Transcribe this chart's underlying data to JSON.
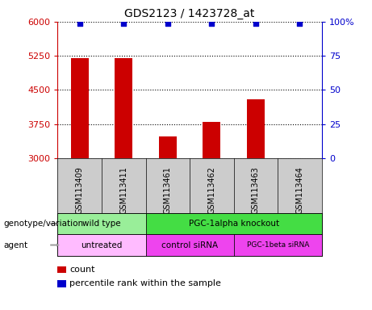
{
  "title": "GDS2123 / 1423728_at",
  "samples": [
    "GSM113409",
    "GSM113411",
    "GSM113461",
    "GSM113462",
    "GSM113463",
    "GSM113464"
  ],
  "bar_values": [
    5200,
    5200,
    3480,
    3800,
    4300,
    3000
  ],
  "percentile_values": [
    99,
    99,
    99,
    99,
    99,
    99
  ],
  "bar_color": "#cc0000",
  "dot_color": "#0000cc",
  "ylim_left": [
    3000,
    6000
  ],
  "ylim_right": [
    0,
    100
  ],
  "yticks_left": [
    3000,
    3750,
    4500,
    5250,
    6000
  ],
  "yticks_right": [
    0,
    25,
    50,
    75,
    100
  ],
  "left_tick_color": "#cc0000",
  "right_tick_color": "#0000cc",
  "genotype_row": [
    {
      "label": "wild type",
      "span": [
        0,
        2
      ],
      "color": "#99ee99"
    },
    {
      "label": "PGC-1alpha knockout",
      "span": [
        2,
        6
      ],
      "color": "#44dd44"
    }
  ],
  "agent_row": [
    {
      "label": "untreated",
      "span": [
        0,
        2
      ],
      "color": "#ffbbff"
    },
    {
      "label": "control siRNA",
      "span": [
        2,
        4
      ],
      "color": "#ee44ee"
    },
    {
      "label": "PGC-1beta siRNA",
      "span": [
        4,
        6
      ],
      "color": "#ee44ee"
    }
  ],
  "sample_bg_color": "#cccccc",
  "legend_count_color": "#cc0000",
  "legend_dot_color": "#0000cc",
  "genotype_label": "genotype/variation",
  "agent_label": "agent",
  "arrow_color": "#999999"
}
